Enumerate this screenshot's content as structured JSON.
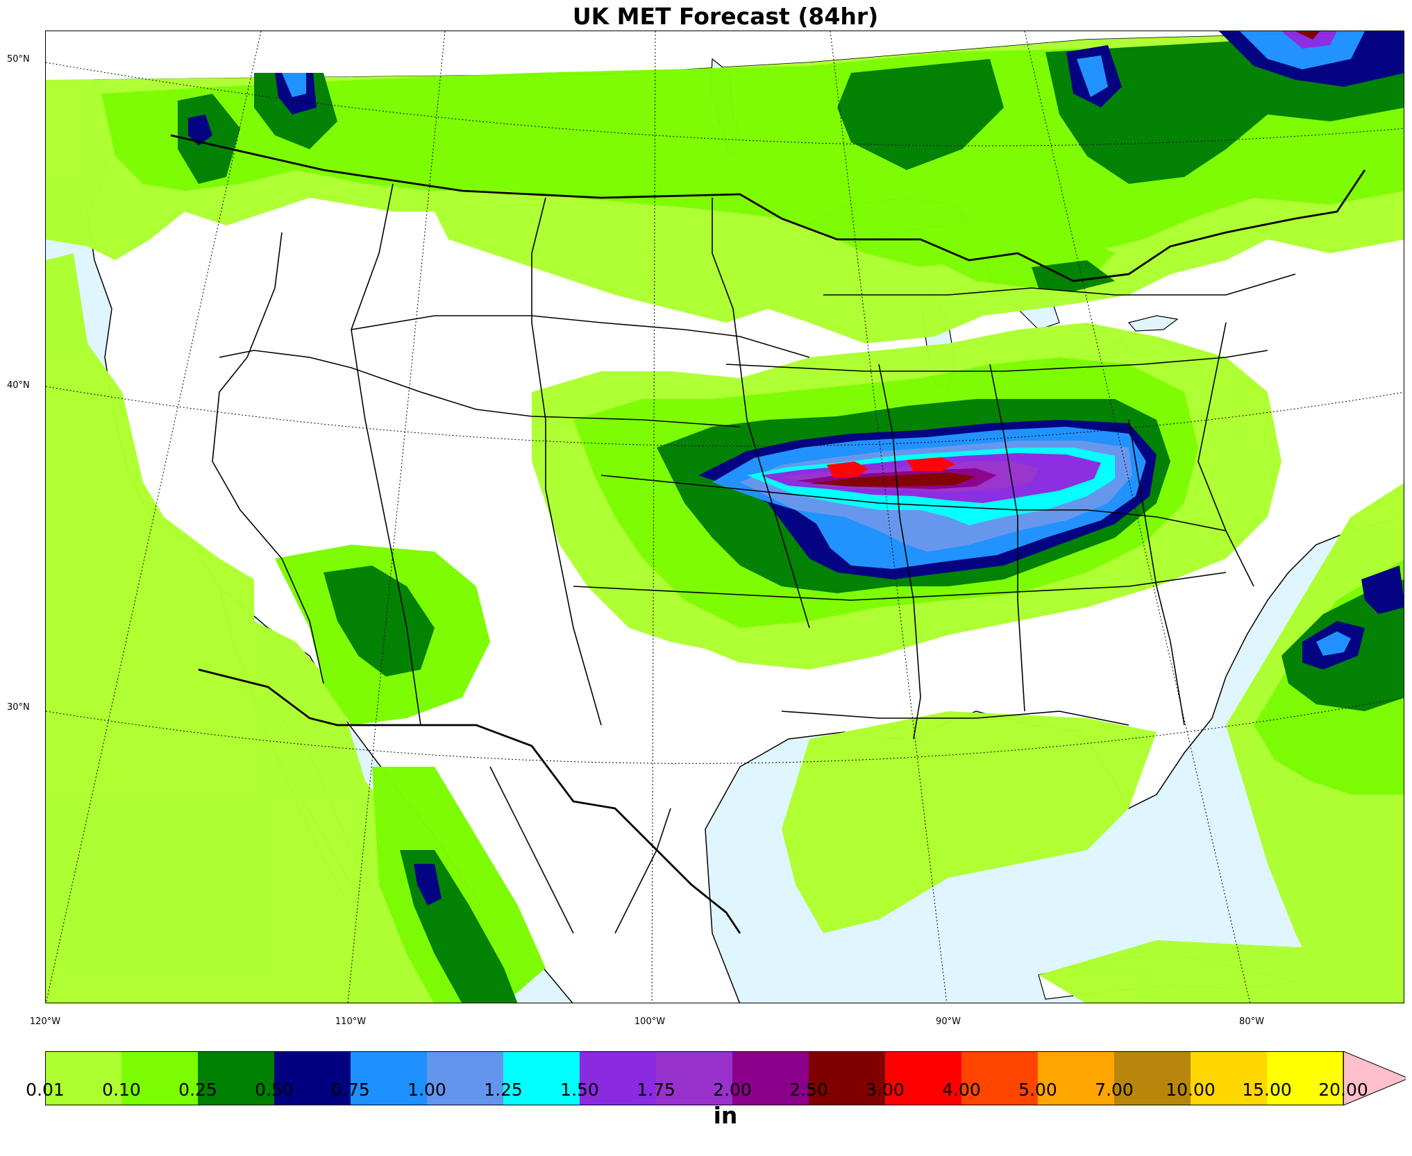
{
  "title": "UK MET Forecast (84hr)",
  "colorbar": {
    "unit": "in",
    "ticks": [
      "0.01",
      "0.10",
      "0.25",
      "0.50",
      "0.75",
      "1.00",
      "1.25",
      "1.50",
      "1.75",
      "2.00",
      "2.50",
      "3.00",
      "4.00",
      "5.00",
      "7.00",
      "10.00",
      "15.00",
      "20.00"
    ],
    "colors": [
      "#adff2f",
      "#7cfc00",
      "#008000",
      "#000080",
      "#1e90ff",
      "#6495ed",
      "#00ffff",
      "#8a2be2",
      "#9932cc",
      "#8b008b",
      "#800000",
      "#ff0000",
      "#ff4500",
      "#ffa500",
      "#b8860b",
      "#ffd700",
      "#ffff00"
    ],
    "extend_color": "#ffc0cb"
  },
  "axes": {
    "lon_labels": [
      "120°W",
      "110°W",
      "100°W",
      "90°W",
      "80°W"
    ],
    "lat_labels": [
      "50°N",
      "40°N",
      "30°N"
    ]
  },
  "map_colors": {
    "ocean": "#dff5ff",
    "land": "#ffffff",
    "border": "#000000"
  }
}
